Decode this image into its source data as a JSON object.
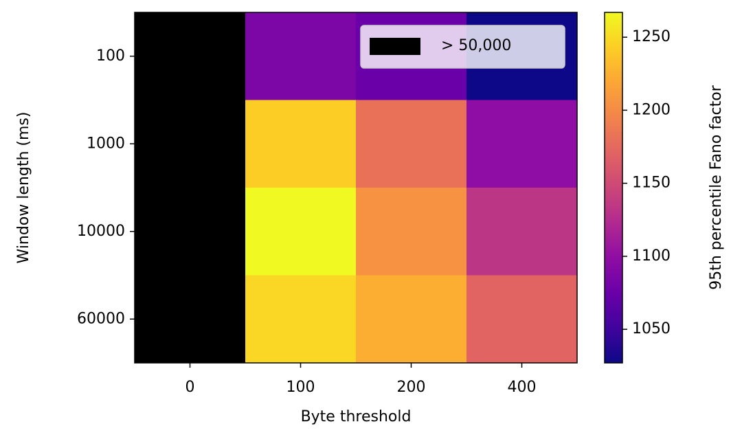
{
  "chart_data": {
    "type": "heatmap",
    "x_label": "Byte threshold",
    "y_label": "Window length (ms)",
    "colorbar_label": "95th percentile Fano factor",
    "x_categories": [
      "0",
      "100",
      "200",
      "400"
    ],
    "y_categories": [
      "100",
      "1000",
      "10000",
      "60000"
    ],
    "values": [
      [
        null,
        1087,
        1075,
        1027
      ],
      [
        null,
        1243,
        1181,
        1099
      ],
      [
        null,
        1267,
        1205,
        1133
      ],
      [
        null,
        1248,
        1224,
        1171
      ]
    ],
    "clim": [
      1027,
      1267
    ],
    "colorbar_ticks": [
      1050,
      1100,
      1150,
      1200,
      1250
    ],
    "colormap": [
      "#0d0887",
      "#41049d",
      "#6a00a8",
      "#8f0da4",
      "#b12a90",
      "#cc4778",
      "#e16462",
      "#f2844b",
      "#fca636",
      "#fcce25",
      "#f0f921"
    ],
    "missing": {
      "label": "> 50,000",
      "color": "#000000"
    },
    "legend_position": "upper right"
  }
}
